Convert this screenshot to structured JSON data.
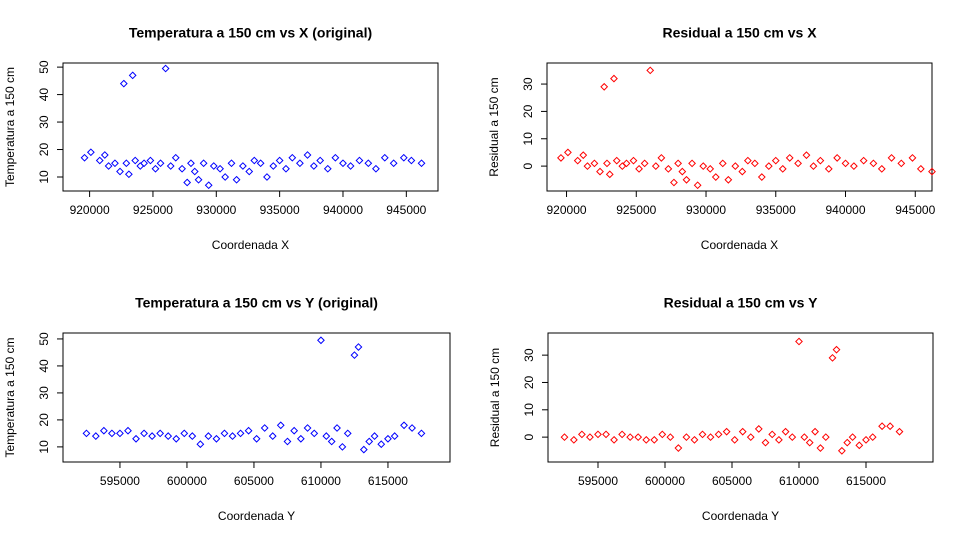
{
  "chart_data": [
    {
      "type": "scatter",
      "title": "Temperatura a 150 cm vs X (original)",
      "x_label": "Coordenada X",
      "y_label": "Temperatura a 150 cm",
      "color": "#0000ff",
      "x": [
        919600,
        920100,
        920800,
        921200,
        921500,
        922000,
        922400,
        922700,
        922900,
        923100,
        923400,
        923600,
        924000,
        924300,
        924800,
        925200,
        925600,
        926000,
        926400,
        926800,
        927300,
        927700,
        928000,
        928300,
        928600,
        929000,
        929400,
        929800,
        930300,
        930700,
        931200,
        931600,
        932100,
        932600,
        933000,
        933500,
        934000,
        934500,
        935000,
        935500,
        936000,
        936600,
        937200,
        937700,
        938200,
        938800,
        939400,
        940000,
        940600,
        941300,
        942000,
        942600,
        943300,
        944000,
        944800,
        945400,
        946200
      ],
      "values": [
        17,
        19,
        16,
        18,
        14,
        15,
        12,
        44,
        15,
        11,
        47,
        16,
        14,
        15,
        16,
        13,
        15,
        49.5,
        14,
        17,
        13,
        8,
        15,
        12,
        9,
        15,
        7,
        14,
        13,
        10,
        15,
        9,
        14,
        12,
        16,
        15,
        10,
        14,
        16,
        13,
        17,
        15,
        18,
        14,
        16,
        13,
        17,
        15,
        14,
        16,
        15,
        13,
        17,
        15,
        17,
        16,
        15
      ],
      "xlim": [
        917900,
        947500
      ],
      "ylim": [
        4.9,
        51.5
      ],
      "xticks": [
        920000,
        925000,
        930000,
        935000,
        940000,
        945000
      ],
      "yticks": [
        10,
        20,
        30,
        40,
        50
      ]
    },
    {
      "type": "scatter",
      "title": "Residual a 150 cm vs X",
      "x_label": "Coordenada X",
      "y_label": "Residual a 150 cm",
      "color": "#ff0000",
      "x": [
        919600,
        920100,
        920800,
        921200,
        921500,
        922000,
        922400,
        922700,
        922900,
        923100,
        923400,
        923600,
        924000,
        924300,
        924800,
        925200,
        925600,
        926000,
        926400,
        926800,
        927300,
        927700,
        928000,
        928300,
        928600,
        929000,
        929400,
        929800,
        930300,
        930700,
        931200,
        931600,
        932100,
        932600,
        933000,
        933500,
        934000,
        934500,
        935000,
        935500,
        936000,
        936600,
        937200,
        937700,
        938200,
        938800,
        939400,
        940000,
        940600,
        941300,
        942000,
        942600,
        943300,
        944000,
        944800,
        945400,
        946200
      ],
      "values": [
        3,
        5,
        2,
        4,
        0,
        1,
        -2,
        29,
        1,
        -3,
        32,
        2,
        0,
        1,
        2,
        -1,
        1,
        35,
        0,
        3,
        -1,
        -6,
        1,
        -2,
        -5,
        1,
        -7,
        0,
        -1,
        -4,
        1,
        -5,
        0,
        -2,
        2,
        1,
        -4,
        0,
        2,
        -1,
        3,
        1,
        4,
        0,
        2,
        -1,
        3,
        1,
        0,
        2,
        1,
        -1,
        3,
        1,
        3,
        -1,
        -2
      ],
      "xlim": [
        918600,
        946200
      ],
      "ylim": [
        -9.1,
        37.7
      ],
      "xticks": [
        920000,
        925000,
        930000,
        935000,
        940000,
        945000
      ],
      "yticks": [
        0,
        10,
        20,
        30
      ]
    },
    {
      "type": "scatter",
      "title": "Temperatura a 150 cm vs Y (original)",
      "x_label": "Coordenada Y",
      "y_label": "Temperatura a 150 cm",
      "color": "#0000ff",
      "x": [
        592500,
        593200,
        593800,
        594400,
        595000,
        595600,
        596200,
        596800,
        597400,
        598000,
        598600,
        599200,
        599800,
        600400,
        601000,
        601600,
        602200,
        602800,
        603400,
        604000,
        604600,
        605200,
        605800,
        606400,
        607000,
        607500,
        608000,
        608500,
        609000,
        609500,
        610000,
        610400,
        610800,
        611200,
        611600,
        612000,
        612500,
        612800,
        613200,
        613600,
        614000,
        614500,
        615000,
        615500,
        616200,
        616800,
        617500
      ],
      "values": [
        15,
        14,
        16,
        15,
        15,
        16,
        13,
        15,
        14,
        15,
        14,
        13,
        15,
        14,
        11,
        14,
        13,
        15,
        14,
        15,
        16,
        13,
        17,
        14,
        18,
        12,
        16,
        13,
        17,
        15,
        49.5,
        14,
        12,
        17,
        10,
        15,
        44,
        47,
        9,
        12,
        14,
        11,
        13,
        14,
        18,
        17,
        15
      ],
      "xlim": [
        590750,
        619630
      ],
      "ylim": [
        4.4,
        52.2
      ],
      "xticks": [
        595000,
        600000,
        605000,
        610000,
        615000
      ],
      "yticks": [
        10,
        20,
        30,
        40,
        50
      ]
    },
    {
      "type": "scatter",
      "title": "Residual a 150 cm vs Y",
      "x_label": "Coordenada Y",
      "y_label": "Residual a 150 cm",
      "color": "#ff0000",
      "x": [
        592500,
        593200,
        593800,
        594400,
        595000,
        595600,
        596200,
        596800,
        597400,
        598000,
        598600,
        599200,
        599800,
        600400,
        601000,
        601600,
        602200,
        602800,
        603400,
        604000,
        604600,
        605200,
        605800,
        606400,
        607000,
        607500,
        608000,
        608500,
        609000,
        609500,
        610000,
        610400,
        610800,
        611200,
        611600,
        612000,
        612500,
        612800,
        613200,
        613600,
        614000,
        614500,
        615000,
        615500,
        616200,
        616800,
        617500
      ],
      "values": [
        0,
        -1,
        1,
        0,
        1,
        1,
        -1,
        1,
        0,
        0,
        -1,
        -1,
        1,
        0,
        -4,
        0,
        -1,
        1,
        0,
        1,
        2,
        -1,
        2,
        0,
        3,
        -2,
        1,
        -1,
        2,
        0,
        35,
        0,
        -2,
        2,
        -4,
        0,
        29,
        32,
        -5,
        -2,
        0,
        -3,
        -1,
        0,
        4,
        4,
        2
      ],
      "xlim": [
        591270,
        620000
      ],
      "ylim": [
        -9.1,
        38.1
      ],
      "xticks": [
        595000,
        600000,
        605000,
        610000,
        615000
      ],
      "yticks": [
        0,
        10,
        20,
        30
      ]
    }
  ]
}
